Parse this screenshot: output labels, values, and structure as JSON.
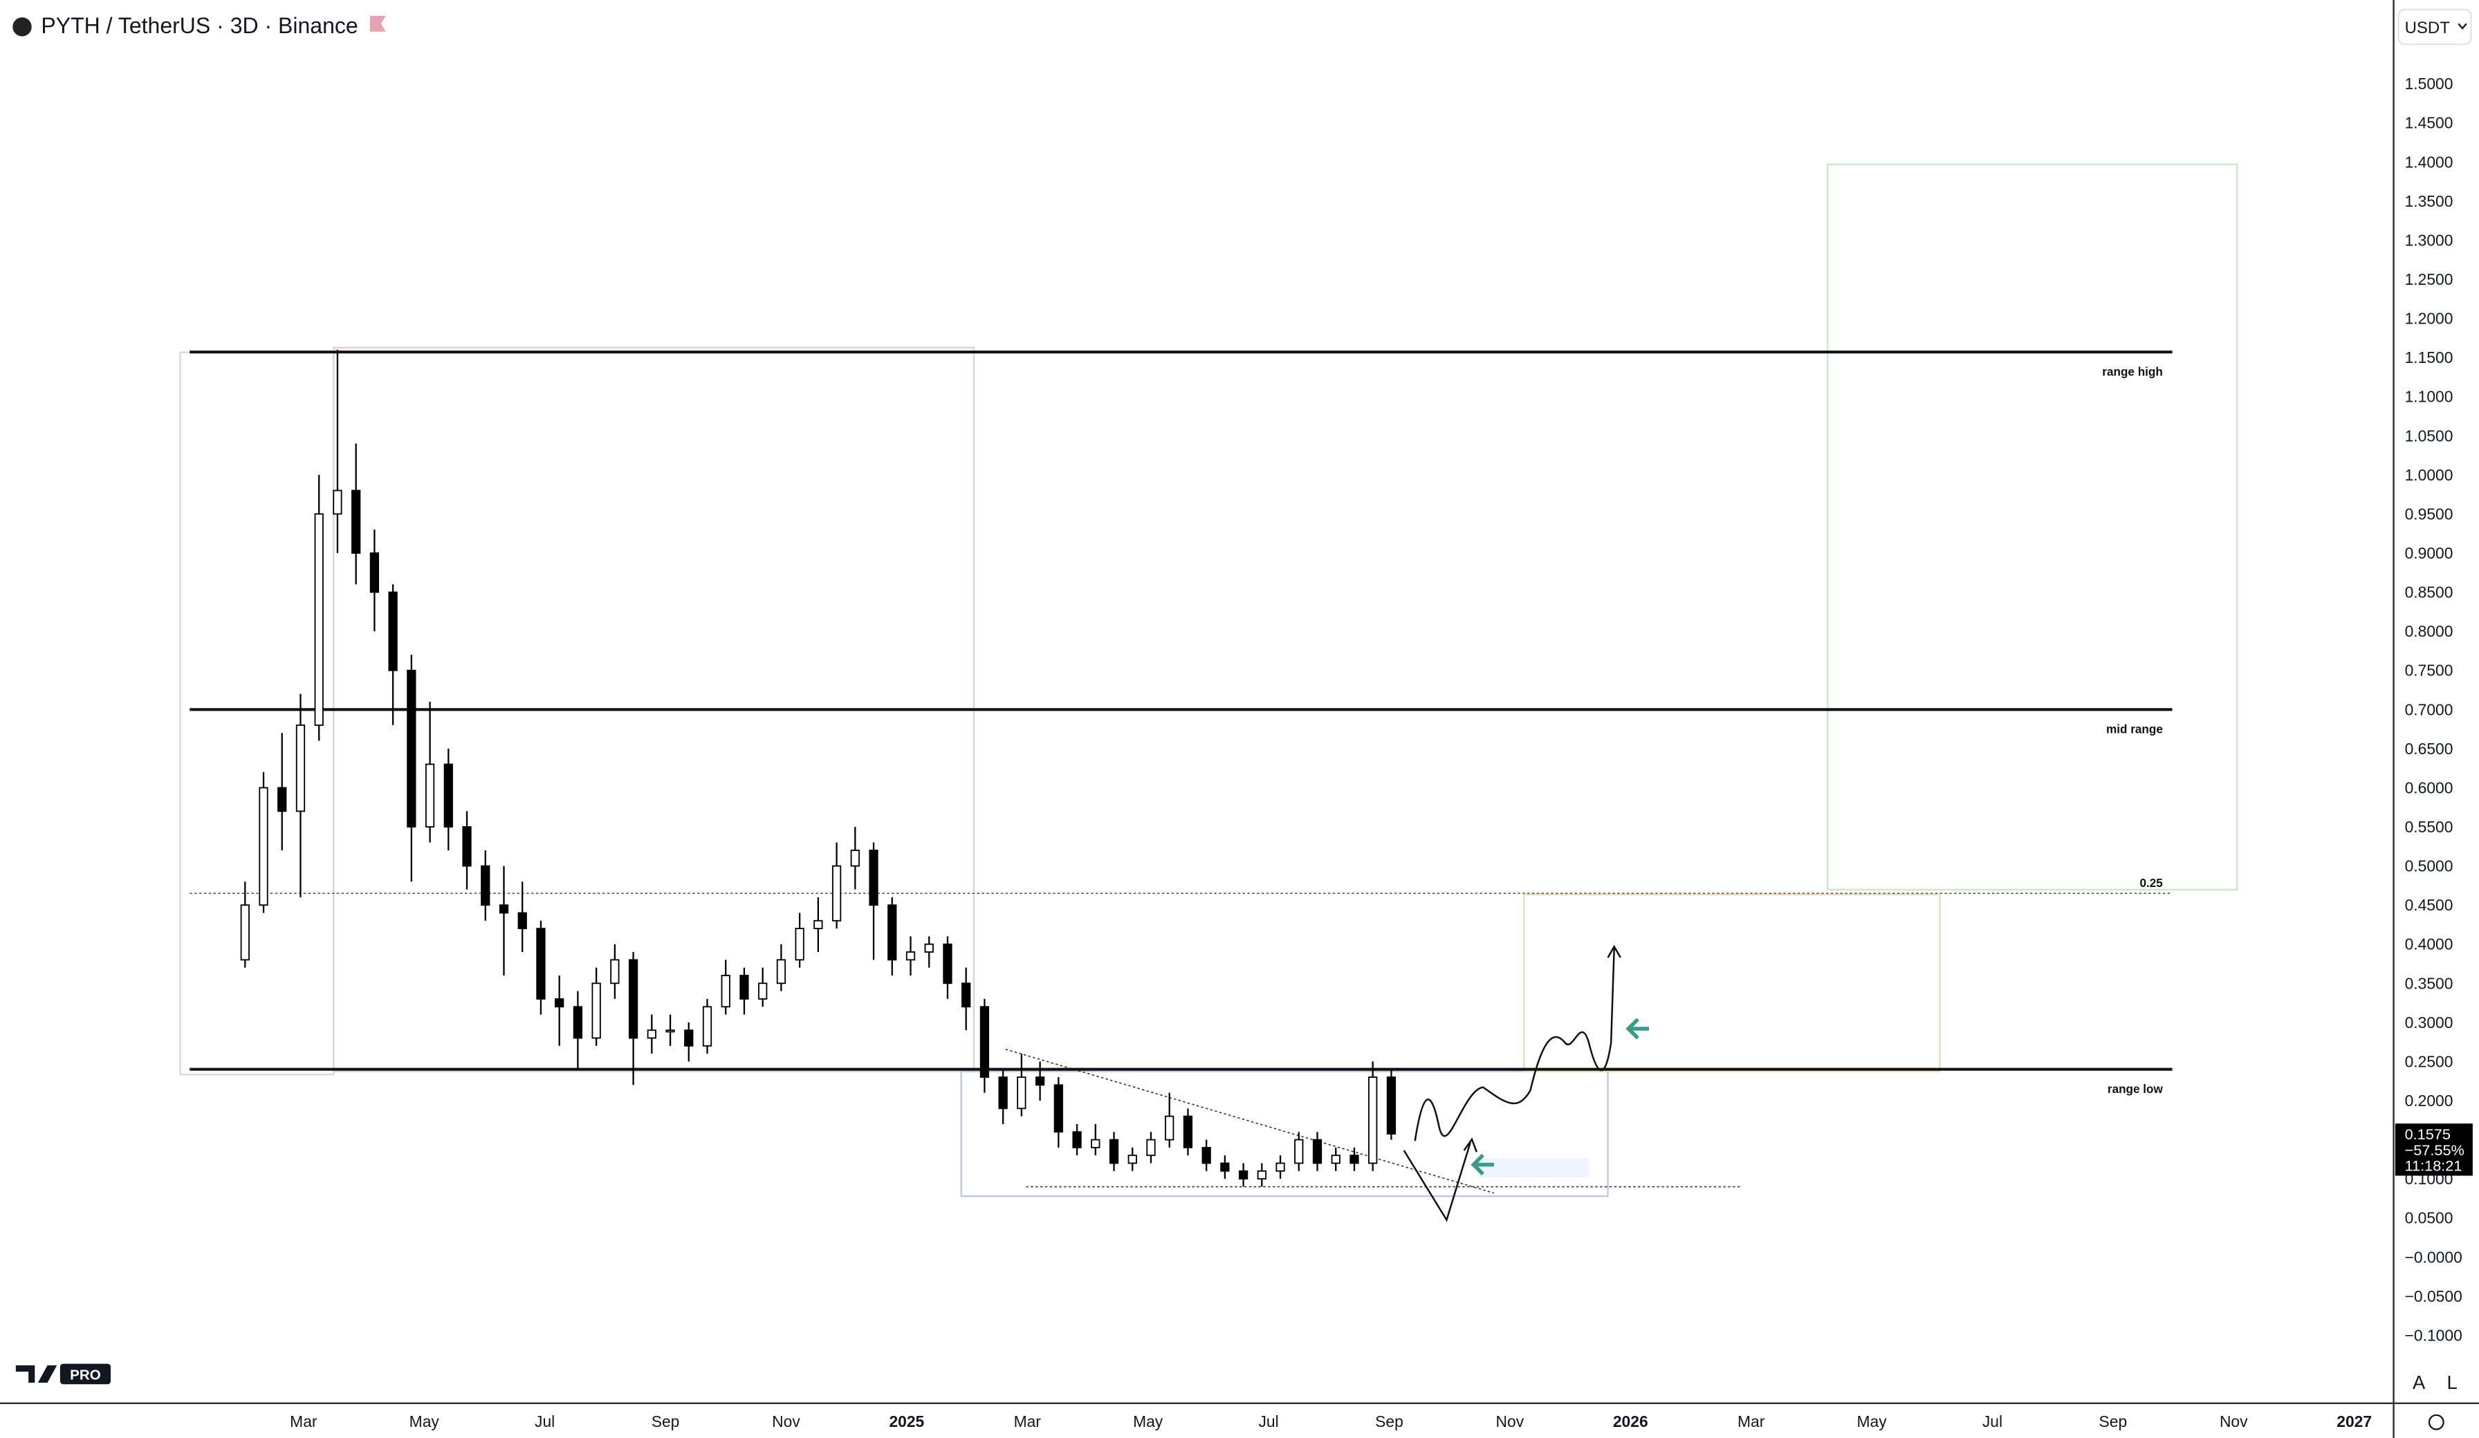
{
  "header": {
    "symbol": "PYTH / TetherUS · 3D · Binance",
    "currency": "USDT"
  },
  "price_axis": {
    "ticks": [
      {
        "value": 1.5,
        "label": "1.5000"
      },
      {
        "value": 1.45,
        "label": "1.4500"
      },
      {
        "value": 1.4,
        "label": "1.4000"
      },
      {
        "value": 1.35,
        "label": "1.3500"
      },
      {
        "value": 1.3,
        "label": "1.3000"
      },
      {
        "value": 1.25,
        "label": "1.2500"
      },
      {
        "value": 1.2,
        "label": "1.2000"
      },
      {
        "value": 1.15,
        "label": "1.1500"
      },
      {
        "value": 1.1,
        "label": "1.1000"
      },
      {
        "value": 1.05,
        "label": "1.0500"
      },
      {
        "value": 1.0,
        "label": "1.0000"
      },
      {
        "value": 0.95,
        "label": "0.9500"
      },
      {
        "value": 0.9,
        "label": "0.9000"
      },
      {
        "value": 0.85,
        "label": "0.8500"
      },
      {
        "value": 0.8,
        "label": "0.8000"
      },
      {
        "value": 0.75,
        "label": "0.7500"
      },
      {
        "value": 0.7,
        "label": "0.7000"
      },
      {
        "value": 0.65,
        "label": "0.6500"
      },
      {
        "value": 0.6,
        "label": "0.6000"
      },
      {
        "value": 0.55,
        "label": "0.5500"
      },
      {
        "value": 0.5,
        "label": "0.5000"
      },
      {
        "value": 0.45,
        "label": "0.4500"
      },
      {
        "value": 0.4,
        "label": "0.4000"
      },
      {
        "value": 0.35,
        "label": "0.3500"
      },
      {
        "value": 0.3,
        "label": "0.3000"
      },
      {
        "value": 0.25,
        "label": "0.2500"
      },
      {
        "value": 0.2,
        "label": "0.2000"
      },
      {
        "value": 0.15,
        "label": "0.1500"
      },
      {
        "value": 0.1,
        "label": "0.1000"
      },
      {
        "value": 0.05,
        "label": "0.0500"
      },
      {
        "value": 0,
        "label": "−0.0000"
      },
      {
        "value": -0.05,
        "label": "−0.0500"
      },
      {
        "value": -0.1,
        "label": "−0.1000"
      }
    ]
  },
  "time_axis": {
    "labels": [
      "Mar",
      "May",
      "Jul",
      "Sep",
      "Nov",
      "2025",
      "Mar",
      "May",
      "Jul",
      "Sep",
      "Nov",
      "2026",
      "Mar",
      "May",
      "Jul",
      "Sep",
      "Nov",
      "2027"
    ]
  },
  "price_tag": {
    "price": "0.1575",
    "change": "−57.55%",
    "countdown": "11:18:21"
  },
  "levels": [
    {
      "label": "range high",
      "price": 1.157,
      "style": "solid"
    },
    {
      "label": "mid range",
      "price": 0.7,
      "style": "solid"
    },
    {
      "label": "0.25",
      "price": 0.465,
      "style": "dotted"
    },
    {
      "label": "range low",
      "price": 0.24,
      "style": "solid"
    }
  ],
  "candles": [
    [
      0.38,
      0.48,
      0.37,
      0.45
    ],
    [
      0.45,
      0.62,
      0.44,
      0.6
    ],
    [
      0.6,
      0.67,
      0.52,
      0.57
    ],
    [
      0.57,
      0.72,
      0.46,
      0.68
    ],
    [
      0.68,
      1.0,
      0.66,
      0.95
    ],
    [
      0.95,
      1.16,
      0.9,
      0.98
    ],
    [
      0.98,
      1.04,
      0.86,
      0.9
    ],
    [
      0.9,
      0.93,
      0.8,
      0.85
    ],
    [
      0.85,
      0.86,
      0.68,
      0.75
    ],
    [
      0.75,
      0.77,
      0.48,
      0.55
    ],
    [
      0.55,
      0.71,
      0.53,
      0.63
    ],
    [
      0.63,
      0.65,
      0.52,
      0.55
    ],
    [
      0.55,
      0.57,
      0.47,
      0.5
    ],
    [
      0.5,
      0.52,
      0.43,
      0.45
    ],
    [
      0.45,
      0.5,
      0.36,
      0.44
    ],
    [
      0.44,
      0.48,
      0.39,
      0.42
    ],
    [
      0.42,
      0.43,
      0.31,
      0.33
    ],
    [
      0.33,
      0.36,
      0.27,
      0.32
    ],
    [
      0.32,
      0.34,
      0.24,
      0.28
    ],
    [
      0.28,
      0.37,
      0.27,
      0.35
    ],
    [
      0.35,
      0.4,
      0.33,
      0.38
    ],
    [
      0.38,
      0.39,
      0.22,
      0.28
    ],
    [
      0.28,
      0.31,
      0.26,
      0.29
    ],
    [
      0.29,
      0.31,
      0.27,
      0.29
    ],
    [
      0.29,
      0.3,
      0.25,
      0.27
    ],
    [
      0.27,
      0.33,
      0.26,
      0.32
    ],
    [
      0.32,
      0.38,
      0.31,
      0.36
    ],
    [
      0.36,
      0.37,
      0.31,
      0.33
    ],
    [
      0.33,
      0.37,
      0.32,
      0.35
    ],
    [
      0.35,
      0.4,
      0.34,
      0.38
    ],
    [
      0.38,
      0.44,
      0.37,
      0.42
    ],
    [
      0.42,
      0.46,
      0.39,
      0.43
    ],
    [
      0.43,
      0.53,
      0.42,
      0.5
    ],
    [
      0.5,
      0.55,
      0.47,
      0.52
    ],
    [
      0.52,
      0.53,
      0.38,
      0.45
    ],
    [
      0.45,
      0.46,
      0.36,
      0.38
    ],
    [
      0.38,
      0.41,
      0.36,
      0.39
    ],
    [
      0.39,
      0.41,
      0.37,
      0.4
    ],
    [
      0.4,
      0.41,
      0.33,
      0.35
    ],
    [
      0.35,
      0.37,
      0.29,
      0.32
    ],
    [
      0.32,
      0.33,
      0.21,
      0.23
    ],
    [
      0.23,
      0.24,
      0.17,
      0.19
    ],
    [
      0.19,
      0.26,
      0.18,
      0.23
    ],
    [
      0.23,
      0.25,
      0.2,
      0.22
    ],
    [
      0.22,
      0.23,
      0.14,
      0.16
    ],
    [
      0.16,
      0.17,
      0.13,
      0.14
    ],
    [
      0.14,
      0.17,
      0.13,
      0.15
    ],
    [
      0.15,
      0.16,
      0.11,
      0.12
    ],
    [
      0.12,
      0.14,
      0.11,
      0.13
    ],
    [
      0.13,
      0.16,
      0.12,
      0.15
    ],
    [
      0.15,
      0.21,
      0.14,
      0.18
    ],
    [
      0.18,
      0.19,
      0.13,
      0.14
    ],
    [
      0.14,
      0.15,
      0.11,
      0.12
    ],
    [
      0.12,
      0.13,
      0.1,
      0.11
    ],
    [
      0.11,
      0.12,
      0.09,
      0.1
    ],
    [
      0.1,
      0.12,
      0.09,
      0.11
    ],
    [
      0.11,
      0.13,
      0.1,
      0.12
    ],
    [
      0.12,
      0.16,
      0.11,
      0.15
    ],
    [
      0.15,
      0.16,
      0.11,
      0.12
    ],
    [
      0.12,
      0.14,
      0.11,
      0.13
    ],
    [
      0.13,
      0.14,
      0.11,
      0.12
    ],
    [
      0.12,
      0.25,
      0.11,
      0.23
    ],
    [
      0.23,
      0.24,
      0.15,
      0.1575
    ]
  ],
  "footer": {
    "logo": "PRO",
    "auto": "A",
    "log": "L"
  }
}
